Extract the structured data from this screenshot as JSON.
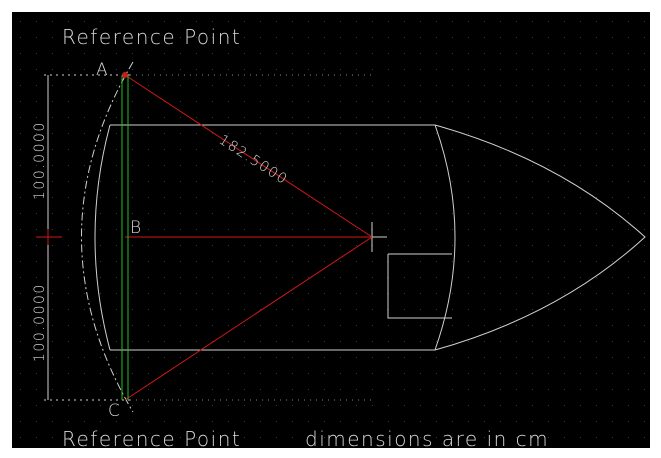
{
  "labels": {
    "top_reference": "Reference Point",
    "point_a": "A",
    "radius": "182.5000",
    "upper_dimension": "100.0000",
    "point_b": "B",
    "lower_dimension": "100.0000",
    "point_c": "C",
    "bottom_reference": "Reference Point",
    "units_note": "dimensions are in cm"
  }
}
